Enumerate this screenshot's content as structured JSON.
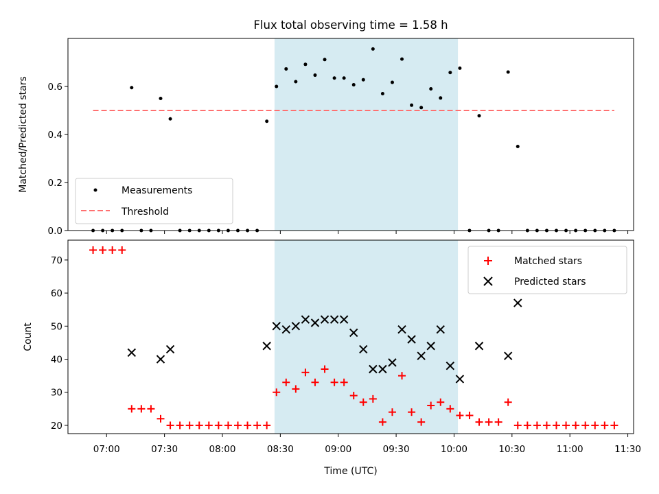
{
  "chart_data": [
    {
      "type": "scatter",
      "title": "Flux total observing time = 1.58 h",
      "ylabel": "Matched/Predicted stars",
      "xlabel": "",
      "ylim": [
        0,
        0.8
      ],
      "xlim": [
        "06:40",
        "11:33"
      ],
      "x_ticks": [
        "07:00",
        "07:30",
        "08:00",
        "08:30",
        "09:00",
        "09:30",
        "10:00",
        "10:30",
        "11:00",
        "11:30"
      ],
      "y_ticks": [
        "0.0",
        "0.2",
        "0.4",
        "0.6"
      ],
      "y_tick_values": [
        0,
        0.2,
        0.4,
        0.6
      ],
      "shaded_region": {
        "start": "08:27",
        "end": "10:02",
        "color": "#add8e6"
      },
      "legend": {
        "position": "lower-left"
      },
      "series": [
        {
          "name": "Measurements",
          "color": "#000000",
          "marker": "dot",
          "points": [
            [
              "06:53",
              0
            ],
            [
              "06:58",
              0
            ],
            [
              "07:03",
              0
            ],
            [
              "07:08",
              0
            ],
            [
              "07:13",
              0.595
            ],
            [
              "07:18",
              0
            ],
            [
              "07:23",
              0
            ],
            [
              "07:28",
              0.55
            ],
            [
              "07:33",
              0.465
            ],
            [
              "07:38",
              0
            ],
            [
              "07:43",
              0
            ],
            [
              "07:48",
              0
            ],
            [
              "07:53",
              0
            ],
            [
              "07:58",
              0
            ],
            [
              "08:03",
              0
            ],
            [
              "08:08",
              0
            ],
            [
              "08:13",
              0
            ],
            [
              "08:18",
              0
            ],
            [
              "08:23",
              0.455
            ],
            [
              "08:28",
              0.6
            ],
            [
              "08:33",
              0.673
            ],
            [
              "08:38",
              0.62
            ],
            [
              "08:43",
              0.692
            ],
            [
              "08:48",
              0.647
            ],
            [
              "08:53",
              0.712
            ],
            [
              "08:58",
              0.635
            ],
            [
              "09:03",
              0.635
            ],
            [
              "09:08",
              0.607
            ],
            [
              "09:13",
              0.628
            ],
            [
              "09:18",
              0.756
            ],
            [
              "09:23",
              0.57
            ],
            [
              "09:28",
              0.617
            ],
            [
              "09:33",
              0.714
            ],
            [
              "09:38",
              0.522
            ],
            [
              "09:43",
              0.512
            ],
            [
              "09:48",
              0.59
            ],
            [
              "09:53",
              0.552
            ],
            [
              "09:58",
              0.658
            ],
            [
              "10:03",
              0.676
            ],
            [
              "10:08",
              0
            ],
            [
              "10:13",
              0.478
            ],
            [
              "10:18",
              0
            ],
            [
              "10:23",
              0
            ],
            [
              "10:28",
              0.66
            ],
            [
              "10:33",
              0.35
            ],
            [
              "10:38",
              0
            ],
            [
              "10:43",
              0
            ],
            [
              "10:48",
              0
            ],
            [
              "10:53",
              0
            ],
            [
              "10:58",
              0
            ],
            [
              "11:03",
              0
            ],
            [
              "11:08",
              0
            ],
            [
              "11:13",
              0
            ],
            [
              "11:18",
              0
            ],
            [
              "11:23",
              0
            ]
          ]
        },
        {
          "name": "Threshold",
          "color": "#ff7070",
          "style": "dashed",
          "points": [
            [
              "06:53",
              0.5
            ],
            [
              "11:23",
              0.5
            ]
          ]
        }
      ]
    },
    {
      "type": "scatter",
      "title": "",
      "ylabel": "Count",
      "xlabel": "Time (UTC)",
      "ylim": [
        17.5,
        76
      ],
      "xlim": [
        "06:40",
        "11:33"
      ],
      "x_ticks": [
        "07:00",
        "07:30",
        "08:00",
        "08:30",
        "09:00",
        "09:30",
        "10:00",
        "10:30",
        "11:00",
        "11:30"
      ],
      "y_ticks": [
        "20",
        "30",
        "40",
        "50",
        "60",
        "70"
      ],
      "y_tick_values": [
        20,
        30,
        40,
        50,
        60,
        70
      ],
      "shaded_region": {
        "start": "08:27",
        "end": "10:02",
        "color": "#add8e6"
      },
      "legend": {
        "position": "top-right"
      },
      "series": [
        {
          "name": "Matched stars",
          "color": "#ff0000",
          "marker": "plus",
          "points": [
            [
              "06:53",
              73
            ],
            [
              "06:58",
              73
            ],
            [
              "07:03",
              73
            ],
            [
              "07:08",
              73
            ],
            [
              "07:13",
              25
            ],
            [
              "07:18",
              25
            ],
            [
              "07:23",
              25
            ],
            [
              "07:28",
              22
            ],
            [
              "07:33",
              20
            ],
            [
              "07:38",
              20
            ],
            [
              "07:43",
              20
            ],
            [
              "07:48",
              20
            ],
            [
              "07:53",
              20
            ],
            [
              "07:58",
              20
            ],
            [
              "08:03",
              20
            ],
            [
              "08:08",
              20
            ],
            [
              "08:13",
              20
            ],
            [
              "08:18",
              20
            ],
            [
              "08:23",
              20
            ],
            [
              "08:28",
              30
            ],
            [
              "08:33",
              33
            ],
            [
              "08:38",
              31
            ],
            [
              "08:43",
              36
            ],
            [
              "08:48",
              33
            ],
            [
              "08:53",
              37
            ],
            [
              "08:58",
              33
            ],
            [
              "09:03",
              33
            ],
            [
              "09:08",
              29
            ],
            [
              "09:13",
              27
            ],
            [
              "09:18",
              28
            ],
            [
              "09:23",
              21
            ],
            [
              "09:28",
              24
            ],
            [
              "09:33",
              35
            ],
            [
              "09:38",
              24
            ],
            [
              "09:43",
              21
            ],
            [
              "09:48",
              26
            ],
            [
              "09:53",
              27
            ],
            [
              "09:58",
              25
            ],
            [
              "10:03",
              23
            ],
            [
              "10:08",
              23
            ],
            [
              "10:13",
              21
            ],
            [
              "10:18",
              21
            ],
            [
              "10:23",
              21
            ],
            [
              "10:28",
              27
            ],
            [
              "10:33",
              20
            ],
            [
              "10:38",
              20
            ],
            [
              "10:43",
              20
            ],
            [
              "10:48",
              20
            ],
            [
              "10:53",
              20
            ],
            [
              "10:58",
              20
            ],
            [
              "11:03",
              20
            ],
            [
              "11:08",
              20
            ],
            [
              "11:13",
              20
            ],
            [
              "11:18",
              20
            ],
            [
              "11:23",
              20
            ]
          ]
        },
        {
          "name": "Predicted stars",
          "color": "#000000",
          "marker": "x",
          "points": [
            [
              "07:13",
              42
            ],
            [
              "07:28",
              40
            ],
            [
              "07:33",
              43
            ],
            [
              "08:23",
              44
            ],
            [
              "08:28",
              50
            ],
            [
              "08:33",
              49
            ],
            [
              "08:38",
              50
            ],
            [
              "08:43",
              52
            ],
            [
              "08:48",
              51
            ],
            [
              "08:53",
              52
            ],
            [
              "08:58",
              52
            ],
            [
              "09:03",
              52
            ],
            [
              "09:08",
              48
            ],
            [
              "09:13",
              43
            ],
            [
              "09:18",
              37
            ],
            [
              "09:23",
              37
            ],
            [
              "09:28",
              39
            ],
            [
              "09:33",
              49
            ],
            [
              "09:38",
              46
            ],
            [
              "09:43",
              41
            ],
            [
              "09:48",
              44
            ],
            [
              "09:53",
              49
            ],
            [
              "09:58",
              38
            ],
            [
              "10:03",
              34
            ],
            [
              "10:13",
              44
            ],
            [
              "10:28",
              41
            ],
            [
              "10:33",
              57
            ]
          ]
        }
      ]
    }
  ]
}
